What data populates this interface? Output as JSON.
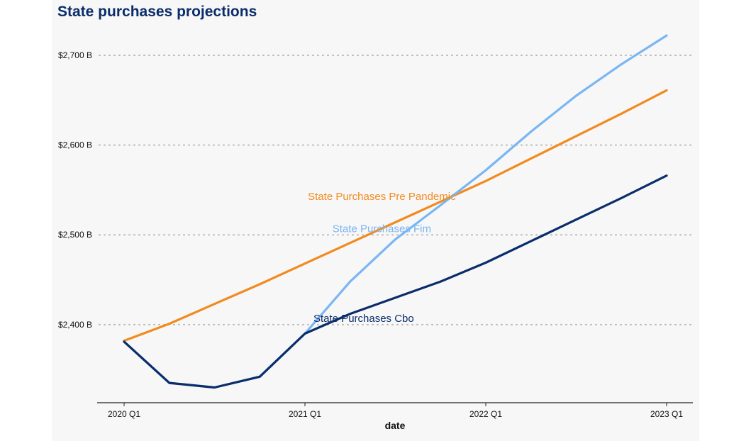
{
  "chart_data": {
    "type": "line",
    "title": "State purchases projections",
    "xlabel": "date",
    "ylabel": "",
    "x": [
      "2020 Q1",
      "2020 Q2",
      "2020 Q3",
      "2020 Q4",
      "2021 Q1",
      "2021 Q2",
      "2021 Q3",
      "2021 Q4",
      "2022 Q1",
      "2022 Q2",
      "2022 Q3",
      "2022 Q4",
      "2023 Q1"
    ],
    "x_ticks": [
      "2020 Q1",
      "2021 Q1",
      "2022 Q1",
      "2023 Q1"
    ],
    "y_ticks": [
      2400,
      2500,
      2600,
      2700
    ],
    "y_tick_labels": [
      "$2,400 B",
      "$2,500 B",
      "$2,600 B",
      "$2,700 B"
    ],
    "ylim": [
      2313,
      2730
    ],
    "grid": "horizontal dotted",
    "series": [
      {
        "name": "State Purchases Pre Pandemic",
        "color": "#f28a1e",
        "label_anchor_index": 5.7,
        "values": [
          2382,
          2401,
          2423,
          2445,
          2468,
          2491,
          2514,
          2537,
          2560,
          2585,
          2610,
          2635,
          2661
        ]
      },
      {
        "name": "State Purchases Fim",
        "color": "#7ab6f4",
        "label_anchor_index": 5.7,
        "values": [
          2381,
          2335,
          2330,
          2342,
          2390,
          2448,
          2495,
          2533,
          2572,
          2615,
          2655,
          2690,
          2722
        ]
      },
      {
        "name": "State Purchases Cbo",
        "color": "#0a2d6b",
        "label_anchor_index": 5.3,
        "values": [
          2381,
          2335,
          2330,
          2342,
          2390,
          2412,
          2430,
          2448,
          2469,
          2493,
          2517,
          2541,
          2566
        ]
      }
    ]
  }
}
